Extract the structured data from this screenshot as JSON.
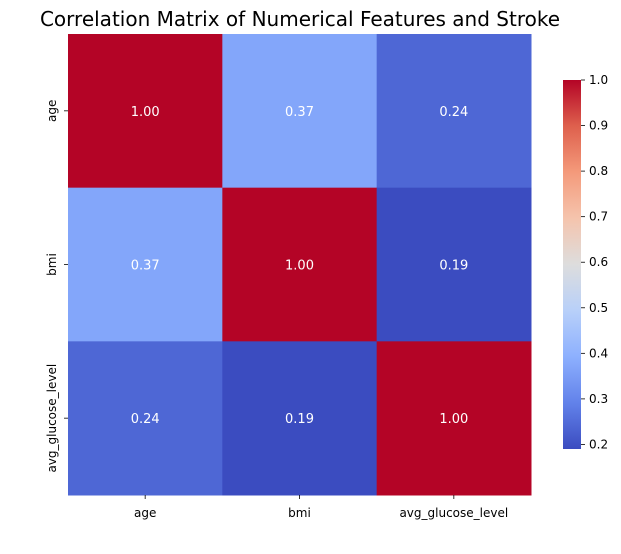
{
  "chart_data": {
    "type": "heatmap",
    "title": "Correlation Matrix of Numerical Features and Stroke",
    "xlabel": "",
    "ylabel": "",
    "rows": [
      "age",
      "bmi",
      "avg_glucose_level"
    ],
    "columns": [
      "age",
      "bmi",
      "avg_glucose_level"
    ],
    "values": [
      [
        1.0,
        0.37,
        0.24
      ],
      [
        0.37,
        1.0,
        0.19
      ],
      [
        0.24,
        0.19,
        1.0
      ]
    ],
    "cell_labels": [
      [
        "1.00",
        "0.37",
        "0.24"
      ],
      [
        "0.37",
        "1.00",
        "0.19"
      ],
      [
        "0.24",
        "0.19",
        "1.00"
      ]
    ],
    "colormap": "coolwarm",
    "colorbar": {
      "range": [
        0.19,
        1.0
      ],
      "ticks": [
        "0.2",
        "0.3",
        "0.4",
        "0.5",
        "0.6",
        "0.7",
        "0.8",
        "0.9",
        "1.0"
      ],
      "tick_values": [
        0.2,
        0.3,
        0.4,
        0.5,
        0.6,
        0.7,
        0.8,
        0.9,
        1.0
      ]
    },
    "grid": false,
    "legend": "colorbar-right"
  }
}
